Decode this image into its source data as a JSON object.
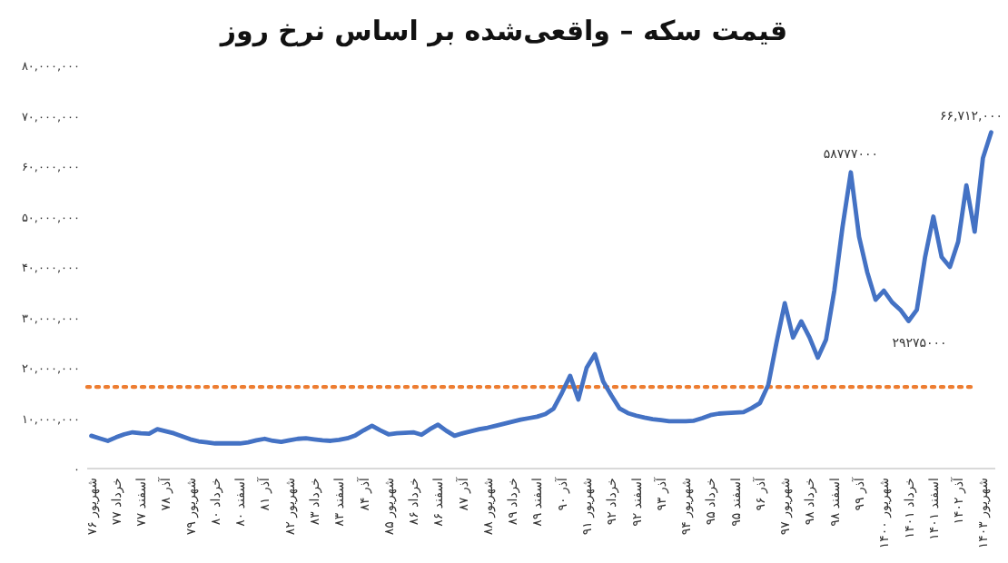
{
  "chart_data": {
    "type": "line",
    "title": "قیمت سکه – واقعی‌شده بر اساس نرخ روز",
    "categories": [
      "شهریور ۷۶",
      null,
      null,
      "خرداد ۷۷",
      null,
      null,
      "اسفند ۷۷",
      null,
      null,
      "آذر ۷۸",
      null,
      null,
      "شهریور ۷۹",
      null,
      null,
      "خرداد ۸۰",
      null,
      null,
      "اسفند ۸۰",
      null,
      null,
      "آذر ۸۱",
      null,
      null,
      "شهریور ۸۲",
      null,
      null,
      "خرداد ۸۳",
      null,
      null,
      "اسفند ۸۳",
      null,
      null,
      "آذر ۸۴",
      null,
      null,
      "شهریور ۸۵",
      null,
      null,
      "خرداد ۸۶",
      null,
      null,
      "اسفند ۸۶",
      null,
      null,
      "آذر ۸۷",
      null,
      null,
      "شهریور ۸۸",
      null,
      null,
      "خرداد ۸۹",
      null,
      null,
      "اسفند ۸۹",
      null,
      null,
      "آذر ۹۰",
      null,
      null,
      "شهریور ۹۱",
      null,
      null,
      "خرداد ۹۲",
      null,
      null,
      "اسفند ۹۲",
      null,
      null,
      "آذر ۹۳",
      null,
      null,
      "شهریور ۹۴",
      null,
      null,
      "خرداد ۹۵",
      null,
      null,
      "اسفند ۹۵",
      null,
      null,
      "آذر ۹۶",
      null,
      null,
      "شهریور ۹۷",
      null,
      null,
      "خرداد ۹۸",
      null,
      null,
      "اسفند ۹۸",
      null,
      null,
      "آذر ۹۹",
      null,
      null,
      "شهریور ۱۴۰۰",
      null,
      null,
      "خرداد ۱۴۰۱",
      null,
      null,
      "اسفند ۱۴۰۱",
      null,
      null,
      "آذر ۱۴۰۲",
      null,
      null,
      "شهریور ۱۴۰۳",
      null
    ],
    "series": [
      {
        "color": "#4472c4",
        "values": [
          6500000,
          6000000,
          5500000,
          6200000,
          6800000,
          7200000,
          7000000,
          6900000,
          7800000,
          7400000,
          7000000,
          6400000,
          5800000,
          5400000,
          5200000,
          5000000,
          5000000,
          5000000,
          5000000,
          5200000,
          5600000,
          5900000,
          5500000,
          5300000,
          5600000,
          5900000,
          6000000,
          5800000,
          5600000,
          5500000,
          5700000,
          6000000,
          6600000,
          7600000,
          8500000,
          7600000,
          6800000,
          7000000,
          7100000,
          7200000,
          6700000,
          7800000,
          8700000,
          7500000,
          6500000,
          7000000,
          7400000,
          7800000,
          8100000,
          8500000,
          8900000,
          9300000,
          9700000,
          10000000,
          10300000,
          10800000,
          11900000,
          15000000,
          18400000,
          13700000,
          20000000,
          22700000,
          17300000,
          14500000,
          11900000,
          11000000,
          10500000,
          10100000,
          9800000,
          9600000,
          9400000,
          9400000,
          9400000,
          9500000,
          10000000,
          10600000,
          10900000,
          11000000,
          11100000,
          11200000,
          12000000,
          13000000,
          16600000,
          25000000,
          32800000,
          26000000,
          29200000,
          26000000,
          22000000,
          25600000,
          35300000,
          48000000,
          58777000,
          46000000,
          38900000,
          33500000,
          35300000,
          33000000,
          31500000,
          29275000,
          31500000,
          42000000,
          50000000,
          42000000,
          40000000,
          45000000,
          56200000,
          47000000,
          61600000,
          66712000
        ]
      }
    ],
    "ylim": [
      0,
      80000000
    ],
    "yticks": [
      {
        "value": 0,
        "label": "۰"
      },
      {
        "value": 10000000,
        "label": "۱۰,۰۰۰,۰۰۰"
      },
      {
        "value": 20000000,
        "label": "۲۰,۰۰۰,۰۰۰"
      },
      {
        "value": 30000000,
        "label": "۳۰,۰۰۰,۰۰۰"
      },
      {
        "value": 40000000,
        "label": "۴۰,۰۰۰,۰۰۰"
      },
      {
        "value": 50000000,
        "label": "۵۰,۰۰۰,۰۰۰"
      },
      {
        "value": 60000000,
        "label": "۶۰,۰۰۰,۰۰۰"
      },
      {
        "value": 70000000,
        "label": "۷۰,۰۰۰,۰۰۰"
      },
      {
        "value": 80000000,
        "label": "۸۰,۰۰۰,۰۰۰"
      }
    ],
    "ref_lines": [
      {
        "axis": "y",
        "value": 16200000,
        "color": "#ed7d31",
        "line_style": "dotted"
      }
    ],
    "annotations": [
      {
        "text": "۵۸۷۷۷۰۰۰",
        "y": 58777000
      },
      {
        "text": "۲۹۲۷۵۰۰۰",
        "y": 29275000
      },
      "۶۶,۷۱۲,۰۰۰"
    ],
    "grid": false,
    "line_style": "solid",
    "marker": "none"
  }
}
